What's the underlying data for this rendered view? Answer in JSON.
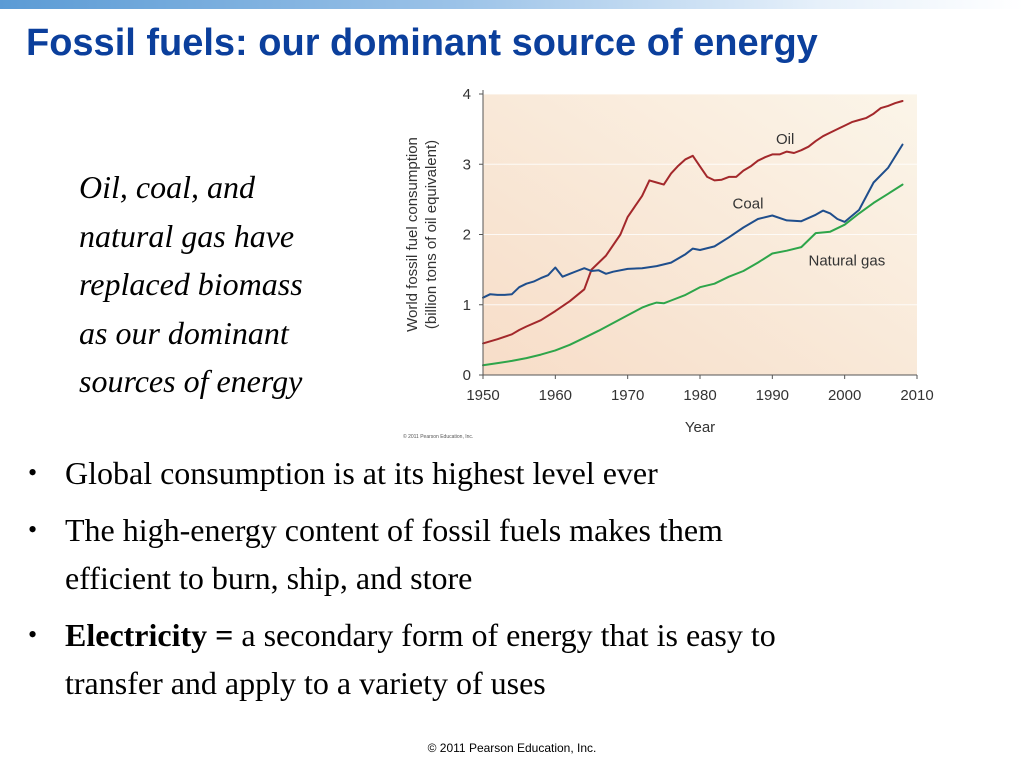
{
  "slide": {
    "title": "Fossil fuels: our dominant source of energy",
    "caption_lines": [
      "Oil, coal, and",
      "natural gas have",
      "replaced biomass",
      "as our dominant",
      "sources of energy"
    ],
    "bullets": [
      {
        "lines": [
          "Global consumption is at its highest level ever"
        ]
      },
      {
        "lines": [
          "The high-energy content of fossil fuels makes them",
          "efficient to burn, ship, and store"
        ]
      },
      {
        "bold": "Electricity = ",
        "lines": [
          "a secondary form of energy that is easy to",
          "transfer and apply to a variety of uses"
        ]
      }
    ],
    "bullet_symbol": "•",
    "footer": "© 2011 Pearson Education, Inc."
  },
  "chart_data": {
    "type": "line",
    "xlabel": "Year",
    "ylabel_lines": [
      "World fossil fuel consumption",
      "(billion tons of oil equivalent)"
    ],
    "xlim": [
      1950,
      2010
    ],
    "ylim": [
      0,
      4
    ],
    "xticks": [
      1950,
      1960,
      1970,
      1980,
      1990,
      2000,
      2010
    ],
    "yticks": [
      0,
      1,
      2,
      3,
      4
    ],
    "copyright": "© 2011 Pearson Education, Inc.",
    "background": [
      "#f7ddc8",
      "#fbf5e9"
    ],
    "series": [
      {
        "name": "Oil",
        "color": "#a3282b",
        "x": [
          1950,
          1952,
          1954,
          1955,
          1956,
          1958,
          1960,
          1962,
          1964,
          1965,
          1967,
          1969,
          1970,
          1972,
          1973,
          1974,
          1975,
          1976,
          1977,
          1978,
          1979,
          1980,
          1981,
          1982,
          1983,
          1984,
          1985,
          1986,
          1987,
          1988,
          1989,
          1990,
          1991,
          1992,
          1993,
          1994,
          1995,
          1996,
          1997,
          1998,
          1999,
          2000,
          2001,
          2002,
          2003,
          2004,
          2005,
          2006,
          2007,
          2008
        ],
        "y": [
          0.45,
          0.51,
          0.58,
          0.64,
          0.69,
          0.78,
          0.91,
          1.05,
          1.22,
          1.5,
          1.7,
          2.0,
          2.25,
          2.55,
          2.77,
          2.74,
          2.71,
          2.87,
          2.98,
          3.07,
          3.12,
          2.97,
          2.82,
          2.77,
          2.78,
          2.82,
          2.82,
          2.91,
          2.97,
          3.05,
          3.1,
          3.14,
          3.14,
          3.18,
          3.16,
          3.2,
          3.25,
          3.33,
          3.4,
          3.45,
          3.5,
          3.55,
          3.6,
          3.63,
          3.66,
          3.72,
          3.8,
          3.83,
          3.87,
          3.9
        ]
      },
      {
        "name": "Coal",
        "color": "#1f4e8c",
        "x": [
          1950,
          1951,
          1952,
          1953,
          1954,
          1955,
          1956,
          1957,
          1958,
          1959,
          1960,
          1961,
          1962,
          1963,
          1964,
          1965,
          1966,
          1967,
          1968,
          1970,
          1972,
          1974,
          1976,
          1978,
          1979,
          1980,
          1982,
          1984,
          1986,
          1988,
          1990,
          1992,
          1994,
          1996,
          1997,
          1998,
          1999,
          2000,
          2002,
          2004,
          2006,
          2008
        ],
        "y": [
          1.1,
          1.15,
          1.14,
          1.14,
          1.15,
          1.25,
          1.3,
          1.33,
          1.38,
          1.42,
          1.53,
          1.4,
          1.44,
          1.48,
          1.52,
          1.48,
          1.49,
          1.44,
          1.47,
          1.51,
          1.52,
          1.55,
          1.6,
          1.72,
          1.8,
          1.78,
          1.83,
          1.96,
          2.1,
          2.22,
          2.27,
          2.2,
          2.19,
          2.28,
          2.34,
          2.3,
          2.22,
          2.18,
          2.35,
          2.74,
          2.95,
          3.28
        ]
      },
      {
        "name": "Natural gas",
        "color": "#2ea54a",
        "x": [
          1950,
          1952,
          1954,
          1956,
          1958,
          1960,
          1962,
          1964,
          1966,
          1968,
          1970,
          1972,
          1973,
          1974,
          1975,
          1976,
          1978,
          1980,
          1982,
          1984,
          1986,
          1988,
          1990,
          1992,
          1994,
          1996,
          1998,
          2000,
          2002,
          2004,
          2006,
          2008
        ],
        "y": [
          0.14,
          0.17,
          0.2,
          0.24,
          0.29,
          0.35,
          0.43,
          0.53,
          0.63,
          0.74,
          0.85,
          0.96,
          1.0,
          1.03,
          1.02,
          1.06,
          1.14,
          1.25,
          1.3,
          1.4,
          1.48,
          1.6,
          1.73,
          1.77,
          1.82,
          2.02,
          2.04,
          2.14,
          2.3,
          2.45,
          2.58,
          2.71
        ]
      }
    ]
  }
}
